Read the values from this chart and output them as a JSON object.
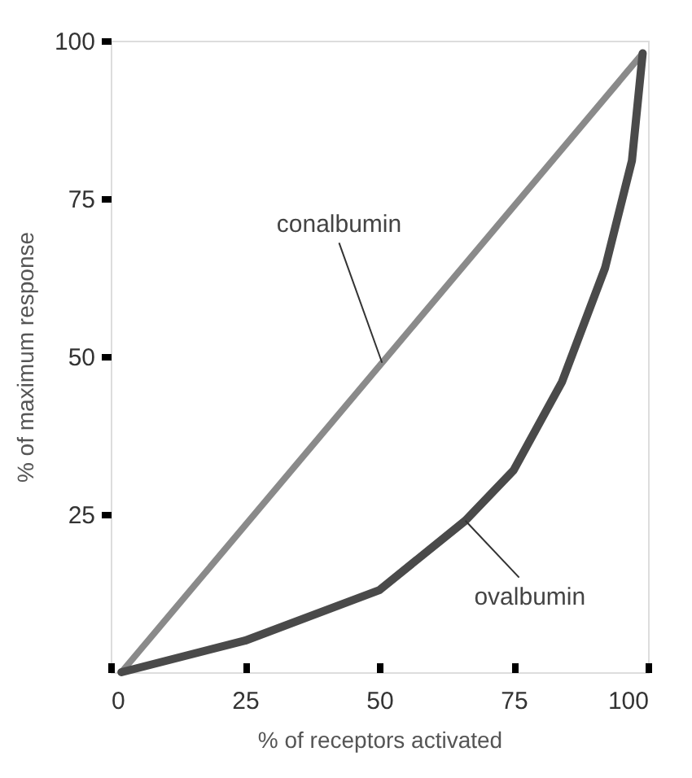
{
  "chart_data": {
    "type": "line",
    "xlabel": "% of receptors activated",
    "ylabel": "% of maximum response",
    "x": [
      2,
      25,
      50,
      66,
      75,
      84,
      92,
      97,
      99
    ],
    "series": [
      {
        "name": "conalbumin",
        "color": "#8a8a8a",
        "x": [
          2,
          99
        ],
        "values": [
          0,
          98
        ]
      },
      {
        "name": "ovalbumin",
        "color": "#4a4a4a",
        "values": [
          0,
          5,
          13,
          24,
          32,
          46,
          64,
          81,
          98
        ]
      }
    ],
    "xlim": [
      0,
      100
    ],
    "ylim": [
      0,
      100
    ],
    "xticks": [
      0,
      25,
      50,
      75,
      100
    ],
    "yticks": [
      25,
      50,
      75,
      100
    ],
    "grid": false,
    "legend": false,
    "marker": "none",
    "line_style": "solid"
  }
}
